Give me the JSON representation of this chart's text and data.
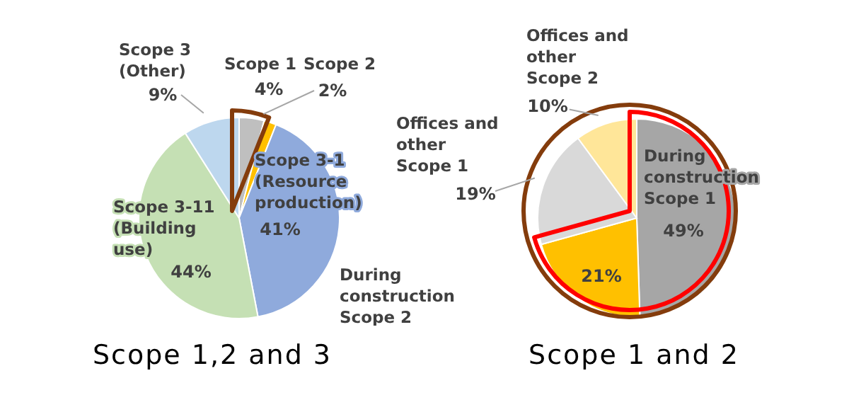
{
  "chart_data": [
    {
      "type": "pie",
      "title": "Scope 1,2 and 3",
      "categories": [
        "Scope 1",
        "Scope 2",
        "Scope 3-1\n(Resource\nproduction)",
        "Scope 3-11\n(Building\nuse)",
        "Scope 3\n(Other)"
      ],
      "values": [
        4,
        2,
        41,
        44,
        9
      ],
      "colors": [
        "#bfbfbf",
        "#ffc000",
        "#8faadc",
        "#c5e0b4",
        "#bdd7ee"
      ],
      "value_labels": [
        "4%",
        "2%",
        "41%",
        "44%",
        "9%"
      ]
    },
    {
      "type": "pie",
      "title": "Scope 1 and 2",
      "categories": [
        "During\nconstruction\nScope 1",
        "During\nconstruction\nScope 2",
        "Offices and\nother\nScope 1",
        "Offices and\nother\nScope 2"
      ],
      "values": [
        49,
        21,
        19,
        10
      ],
      "colors": [
        "#a6a6a6",
        "#ffc000",
        "#d9d9d9",
        "#ffe699"
      ],
      "value_labels": [
        "49%",
        "21%",
        "19%",
        "10%"
      ]
    }
  ]
}
